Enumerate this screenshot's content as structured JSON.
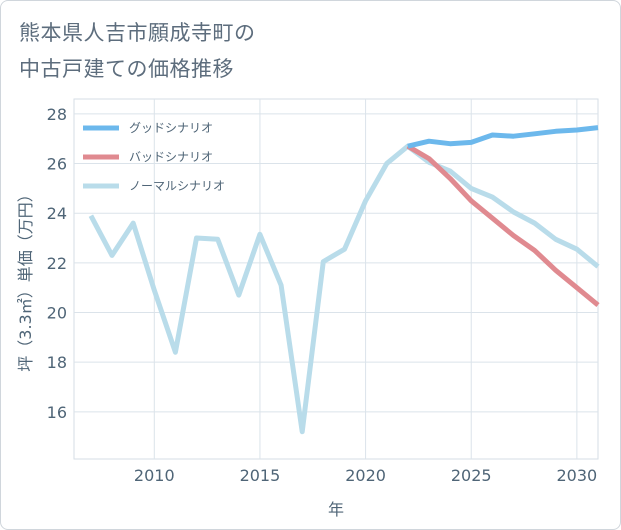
{
  "title_line1": "熊本県人吉市願成寺町の",
  "title_line2": "中古戸建ての価格推移",
  "chart_data": {
    "type": "line",
    "xlabel": "年",
    "ylabel": "坪（3.3㎡）単価（万円）",
    "xlim": [
      2006.2,
      2031.0
    ],
    "ylim": [
      14.1,
      28.6
    ],
    "xticks": [
      2010,
      2015,
      2020,
      2025,
      2030
    ],
    "yticks": [
      16,
      18,
      20,
      22,
      24,
      26,
      28
    ],
    "grid": true,
    "legend_position": "top-left",
    "series": [
      {
        "name": "グッドシナリオ",
        "color": "#6cb8ec",
        "x": [
          2022,
          2023,
          2024,
          2025,
          2026,
          2027,
          2028,
          2029,
          2030,
          2031
        ],
        "y": [
          26.7,
          26.9,
          26.8,
          26.85,
          27.15,
          27.1,
          27.2,
          27.3,
          27.35,
          27.45
        ]
      },
      {
        "name": "バッドシナリオ",
        "color": "#e08a90",
        "x": [
          2022,
          2023,
          2024,
          2025,
          2026,
          2027,
          2028,
          2029,
          2030,
          2031
        ],
        "y": [
          26.7,
          26.2,
          25.4,
          24.5,
          23.8,
          23.1,
          22.5,
          21.7,
          21.0,
          20.3
        ]
      },
      {
        "name": "ノーマルシナリオ",
        "color": "#b9dcea",
        "x": [
          2007,
          2008,
          2009,
          2010,
          2011,
          2012,
          2013,
          2014,
          2015,
          2016,
          2017,
          2018,
          2019,
          2020,
          2021,
          2022,
          2023,
          2024,
          2025,
          2026,
          2027,
          2028,
          2029,
          2030,
          2031
        ],
        "y": [
          23.9,
          22.3,
          23.6,
          20.9,
          18.4,
          23.0,
          22.95,
          20.7,
          23.15,
          21.1,
          15.2,
          22.05,
          22.55,
          24.5,
          26.0,
          26.7,
          26.05,
          25.7,
          25.0,
          24.65,
          24.05,
          23.6,
          22.95,
          22.55,
          21.85
        ]
      }
    ]
  }
}
